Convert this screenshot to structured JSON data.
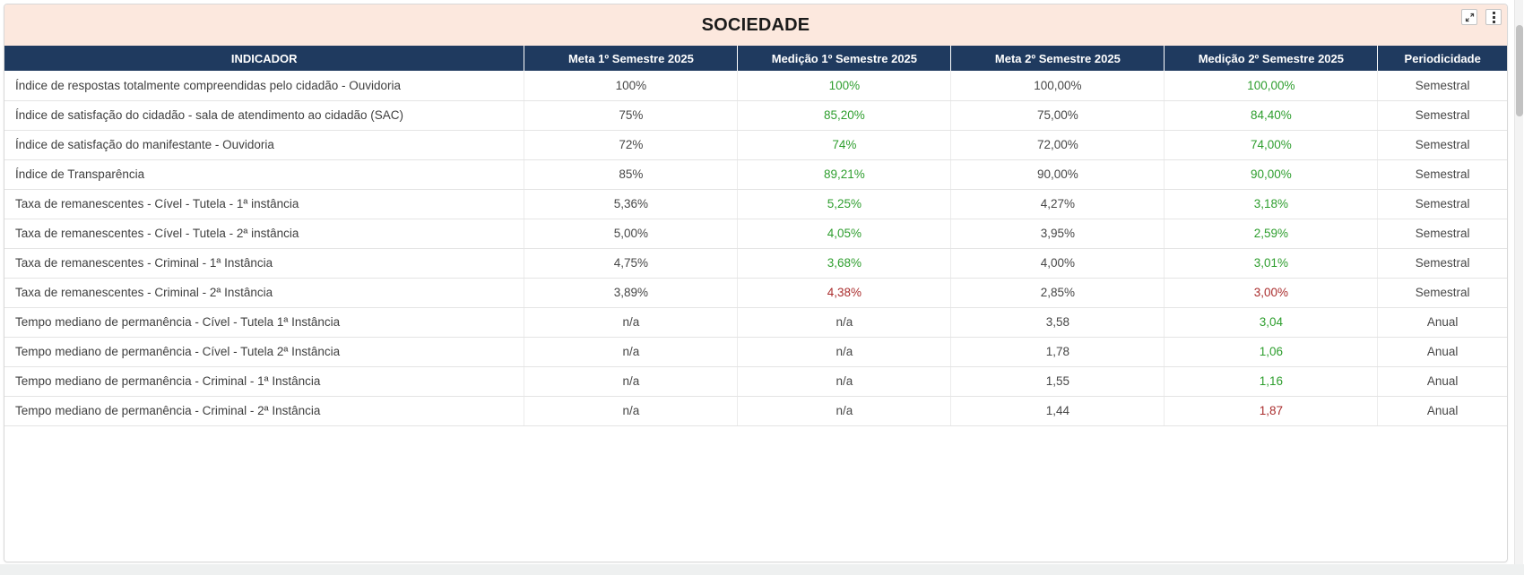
{
  "panel": {
    "title": "SOCIEDADE",
    "colors": {
      "title_bar_bg": "#fce8de",
      "header_bg": "#1f3a5f",
      "header_text": "#ffffff",
      "good": "#2e9e2e",
      "bad": "#aa2e2e",
      "neutral": "#474747"
    },
    "controls": {
      "expand_icon": "expand-icon",
      "menu_icon": "kebab-menu-icon"
    }
  },
  "table": {
    "columns": [
      "INDICADOR",
      "Meta 1º Semestre 2025",
      "Medição 1º Semestre 2025",
      "Meta 2º Semestre 2025",
      "Medição 2º Semestre 2025",
      "Periodicidade"
    ],
    "rows": [
      {
        "indicador": "Índice de respostas totalmente compreendidas pelo cidadão - Ouvidoria",
        "meta1": "100%",
        "medicao1": "100%",
        "medicao1_status": "good",
        "meta2": "100,00%",
        "medicao2": "100,00%",
        "medicao2_status": "good",
        "periodicidade": "Semestral"
      },
      {
        "indicador": "Índice de satisfação do cidadão - sala de atendimento ao cidadão (SAC)",
        "meta1": "75%",
        "medicao1": "85,20%",
        "medicao1_status": "good",
        "meta2": "75,00%",
        "medicao2": "84,40%",
        "medicao2_status": "good",
        "periodicidade": "Semestral"
      },
      {
        "indicador": "Índice de satisfação do manifestante - Ouvidoria",
        "meta1": "72%",
        "medicao1": "74%",
        "medicao1_status": "good",
        "meta2": "72,00%",
        "medicao2": "74,00%",
        "medicao2_status": "good",
        "periodicidade": "Semestral"
      },
      {
        "indicador": "Índice de Transparência",
        "meta1": "85%",
        "medicao1": "89,21%",
        "medicao1_status": "good",
        "meta2": "90,00%",
        "medicao2": "90,00%",
        "medicao2_status": "good",
        "periodicidade": "Semestral"
      },
      {
        "indicador": "Taxa de remanescentes - Cível - Tutela - 1ª instância",
        "meta1": "5,36%",
        "medicao1": "5,25%",
        "medicao1_status": "good",
        "meta2": "4,27%",
        "medicao2": "3,18%",
        "medicao2_status": "good",
        "periodicidade": "Semestral"
      },
      {
        "indicador": "Taxa de remanescentes - Cível - Tutela - 2ª instância",
        "meta1": "5,00%",
        "medicao1": "4,05%",
        "medicao1_status": "good",
        "meta2": "3,95%",
        "medicao2": "2,59%",
        "medicao2_status": "good",
        "periodicidade": "Semestral"
      },
      {
        "indicador": "Taxa de remanescentes - Criminal - 1ª Instância",
        "meta1": "4,75%",
        "medicao1": "3,68%",
        "medicao1_status": "good",
        "meta2": "4,00%",
        "medicao2": "3,01%",
        "medicao2_status": "good",
        "periodicidade": "Semestral"
      },
      {
        "indicador": "Taxa de remanescentes - Criminal - 2ª Instância",
        "meta1": "3,89%",
        "medicao1": "4,38%",
        "medicao1_status": "bad",
        "meta2": "2,85%",
        "medicao2": "3,00%",
        "medicao2_status": "bad",
        "periodicidade": "Semestral"
      },
      {
        "indicador": "Tempo mediano de permanência - Cível - Tutela 1ª Instância",
        "meta1": "n/a",
        "medicao1": "n/a",
        "medicao1_status": "neutral",
        "meta2": "3,58",
        "medicao2": "3,04",
        "medicao2_status": "good",
        "periodicidade": "Anual"
      },
      {
        "indicador": "Tempo mediano de permanência - Cível - Tutela 2ª Instância",
        "meta1": "n/a",
        "medicao1": "n/a",
        "medicao1_status": "neutral",
        "meta2": "1,78",
        "medicao2": "1,06",
        "medicao2_status": "good",
        "periodicidade": "Anual"
      },
      {
        "indicador": "Tempo mediano de permanência - Criminal - 1ª Instância",
        "meta1": "n/a",
        "medicao1": "n/a",
        "medicao1_status": "neutral",
        "meta2": "1,55",
        "medicao2": "1,16",
        "medicao2_status": "good",
        "periodicidade": "Anual"
      },
      {
        "indicador": "Tempo mediano de permanência - Criminal - 2ª Instância",
        "meta1": "n/a",
        "medicao1": "n/a",
        "medicao1_status": "neutral",
        "meta2": "1,44",
        "medicao2": "1,87",
        "medicao2_status": "bad",
        "periodicidade": "Anual"
      }
    ]
  }
}
